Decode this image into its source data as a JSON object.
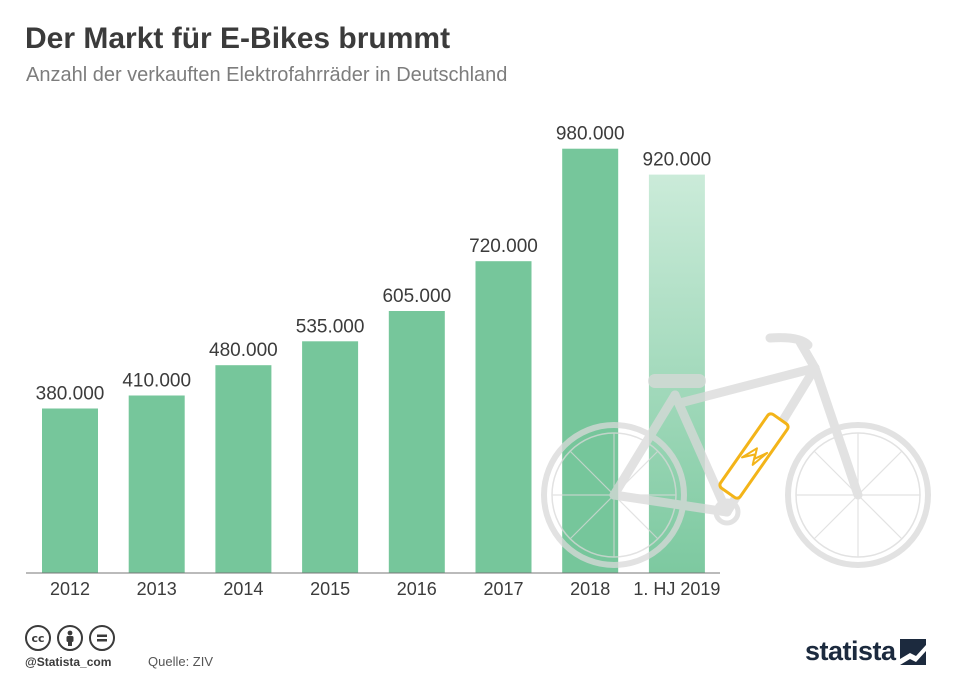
{
  "title": "Der Markt für E-Bikes brummt",
  "subtitle": "Anzahl der verkauften Elektrofahrräder in Deutschland",
  "footer": {
    "handle": "@Statista_com",
    "source": "Quelle: ZIV",
    "brand": "statista",
    "license_icons": [
      "cc-icon",
      "by-icon",
      "nd-icon"
    ]
  },
  "colors": {
    "bar": "#76c69b",
    "bar_highlight_top": "#c8ead7",
    "bar_highlight_bottom": "#76c69b",
    "label": "#3b3b3b",
    "bike": "#d9d9d9",
    "battery": "#f3b419"
  },
  "chart_data": {
    "type": "bar",
    "title": "Der Markt für E-Bikes brummt",
    "subtitle": "Anzahl der verkauften Elektrofahrräder in Deutschland",
    "categories": [
      "2012",
      "2013",
      "2014",
      "2015",
      "2016",
      "2017",
      "2018",
      "1. HJ 2019"
    ],
    "values": [
      380000,
      410000,
      480000,
      535000,
      605000,
      720000,
      980000,
      920000
    ],
    "value_labels": [
      "380.000",
      "410.000",
      "480.000",
      "535.000",
      "605.000",
      "720.000",
      "980.000",
      "920.000"
    ],
    "highlighted_category": "1. HJ 2019",
    "ylim": [
      0,
      1000000
    ],
    "grid": false,
    "legend": "none"
  }
}
